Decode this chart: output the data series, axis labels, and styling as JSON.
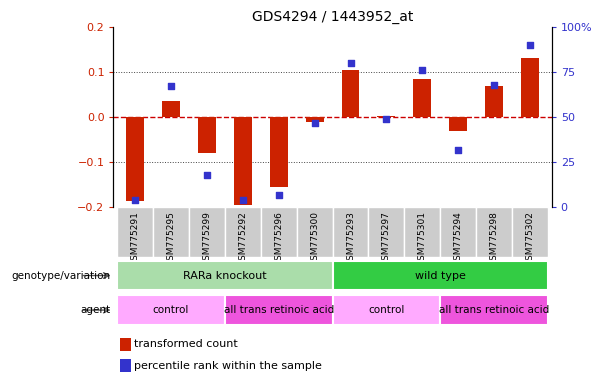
{
  "title": "GDS4294 / 1443952_at",
  "samples": [
    "GSM775291",
    "GSM775295",
    "GSM775299",
    "GSM775292",
    "GSM775296",
    "GSM775300",
    "GSM775293",
    "GSM775297",
    "GSM775301",
    "GSM775294",
    "GSM775298",
    "GSM775302"
  ],
  "red_bars": [
    -0.185,
    0.035,
    -0.08,
    -0.195,
    -0.155,
    -0.01,
    0.105,
    0.002,
    0.085,
    -0.03,
    0.07,
    0.13
  ],
  "blue_dots_pct": [
    4,
    67,
    18,
    4,
    7,
    47,
    80,
    49,
    76,
    32,
    68,
    90
  ],
  "ylim_left": [
    -0.2,
    0.2
  ],
  "ylim_right": [
    0,
    100
  ],
  "yticks_left": [
    -0.2,
    -0.1,
    0.0,
    0.1,
    0.2
  ],
  "yticks_right": [
    0,
    25,
    50,
    75,
    100
  ],
  "ytick_right_labels": [
    "0",
    "25",
    "50",
    "75",
    "100%"
  ],
  "genotype_groups": [
    {
      "label": "RARa knockout",
      "start": 0,
      "end": 6,
      "color": "#aaddaa"
    },
    {
      "label": "wild type",
      "start": 6,
      "end": 12,
      "color": "#33cc44"
    }
  ],
  "agent_groups": [
    {
      "label": "control",
      "start": 0,
      "end": 3,
      "color": "#ffaaff"
    },
    {
      "label": "all trans retinoic acid",
      "start": 3,
      "end": 6,
      "color": "#ee55dd"
    },
    {
      "label": "control",
      "start": 6,
      "end": 9,
      "color": "#ffaaff"
    },
    {
      "label": "all trans retinoic acid",
      "start": 9,
      "end": 12,
      "color": "#ee55dd"
    }
  ],
  "red_color": "#cc2200",
  "blue_color": "#3333cc",
  "zero_line_color": "#cc0000",
  "dotted_line_color": "#444444",
  "bar_width": 0.5,
  "sample_box_color": "#cccccc",
  "legend_items": [
    {
      "color": "#cc2200",
      "label": "transformed count"
    },
    {
      "color": "#3333cc",
      "label": "percentile rank within the sample"
    }
  ]
}
